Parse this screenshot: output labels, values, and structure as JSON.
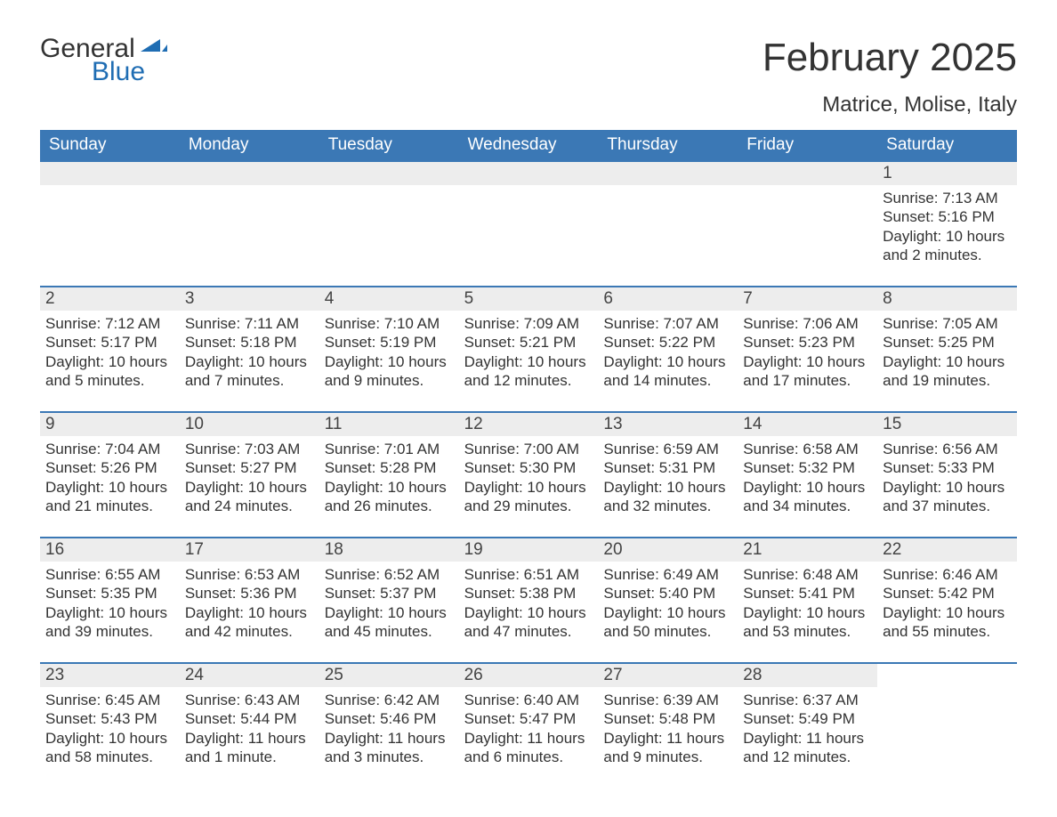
{
  "logo": {
    "word1": "General",
    "word2": "Blue"
  },
  "title": "February 2025",
  "location": "Matrice, Molise, Italy",
  "colors": {
    "header_bg": "#3b78b5",
    "header_text": "#ffffff",
    "stripe_bg": "#ededed",
    "divider": "#3b78b5",
    "text": "#333333",
    "logo_blue": "#1f6db3"
  },
  "day_headers": [
    "Sunday",
    "Monday",
    "Tuesday",
    "Wednesday",
    "Thursday",
    "Friday",
    "Saturday"
  ],
  "weeks": [
    [
      {
        "empty": true
      },
      {
        "empty": true
      },
      {
        "empty": true
      },
      {
        "empty": true
      },
      {
        "empty": true
      },
      {
        "empty": true
      },
      {
        "n": "1",
        "sunrise": "Sunrise: 7:13 AM",
        "sunset": "Sunset: 5:16 PM",
        "day1": "Daylight: 10 hours",
        "day2": "and 2 minutes."
      }
    ],
    [
      {
        "n": "2",
        "sunrise": "Sunrise: 7:12 AM",
        "sunset": "Sunset: 5:17 PM",
        "day1": "Daylight: 10 hours",
        "day2": "and 5 minutes."
      },
      {
        "n": "3",
        "sunrise": "Sunrise: 7:11 AM",
        "sunset": "Sunset: 5:18 PM",
        "day1": "Daylight: 10 hours",
        "day2": "and 7 minutes."
      },
      {
        "n": "4",
        "sunrise": "Sunrise: 7:10 AM",
        "sunset": "Sunset: 5:19 PM",
        "day1": "Daylight: 10 hours",
        "day2": "and 9 minutes."
      },
      {
        "n": "5",
        "sunrise": "Sunrise: 7:09 AM",
        "sunset": "Sunset: 5:21 PM",
        "day1": "Daylight: 10 hours",
        "day2": "and 12 minutes."
      },
      {
        "n": "6",
        "sunrise": "Sunrise: 7:07 AM",
        "sunset": "Sunset: 5:22 PM",
        "day1": "Daylight: 10 hours",
        "day2": "and 14 minutes."
      },
      {
        "n": "7",
        "sunrise": "Sunrise: 7:06 AM",
        "sunset": "Sunset: 5:23 PM",
        "day1": "Daylight: 10 hours",
        "day2": "and 17 minutes."
      },
      {
        "n": "8",
        "sunrise": "Sunrise: 7:05 AM",
        "sunset": "Sunset: 5:25 PM",
        "day1": "Daylight: 10 hours",
        "day2": "and 19 minutes."
      }
    ],
    [
      {
        "n": "9",
        "sunrise": "Sunrise: 7:04 AM",
        "sunset": "Sunset: 5:26 PM",
        "day1": "Daylight: 10 hours",
        "day2": "and 21 minutes."
      },
      {
        "n": "10",
        "sunrise": "Sunrise: 7:03 AM",
        "sunset": "Sunset: 5:27 PM",
        "day1": "Daylight: 10 hours",
        "day2": "and 24 minutes."
      },
      {
        "n": "11",
        "sunrise": "Sunrise: 7:01 AM",
        "sunset": "Sunset: 5:28 PM",
        "day1": "Daylight: 10 hours",
        "day2": "and 26 minutes."
      },
      {
        "n": "12",
        "sunrise": "Sunrise: 7:00 AM",
        "sunset": "Sunset: 5:30 PM",
        "day1": "Daylight: 10 hours",
        "day2": "and 29 minutes."
      },
      {
        "n": "13",
        "sunrise": "Sunrise: 6:59 AM",
        "sunset": "Sunset: 5:31 PM",
        "day1": "Daylight: 10 hours",
        "day2": "and 32 minutes."
      },
      {
        "n": "14",
        "sunrise": "Sunrise: 6:58 AM",
        "sunset": "Sunset: 5:32 PM",
        "day1": "Daylight: 10 hours",
        "day2": "and 34 minutes."
      },
      {
        "n": "15",
        "sunrise": "Sunrise: 6:56 AM",
        "sunset": "Sunset: 5:33 PM",
        "day1": "Daylight: 10 hours",
        "day2": "and 37 minutes."
      }
    ],
    [
      {
        "n": "16",
        "sunrise": "Sunrise: 6:55 AM",
        "sunset": "Sunset: 5:35 PM",
        "day1": "Daylight: 10 hours",
        "day2": "and 39 minutes."
      },
      {
        "n": "17",
        "sunrise": "Sunrise: 6:53 AM",
        "sunset": "Sunset: 5:36 PM",
        "day1": "Daylight: 10 hours",
        "day2": "and 42 minutes."
      },
      {
        "n": "18",
        "sunrise": "Sunrise: 6:52 AM",
        "sunset": "Sunset: 5:37 PM",
        "day1": "Daylight: 10 hours",
        "day2": "and 45 minutes."
      },
      {
        "n": "19",
        "sunrise": "Sunrise: 6:51 AM",
        "sunset": "Sunset: 5:38 PM",
        "day1": "Daylight: 10 hours",
        "day2": "and 47 minutes."
      },
      {
        "n": "20",
        "sunrise": "Sunrise: 6:49 AM",
        "sunset": "Sunset: 5:40 PM",
        "day1": "Daylight: 10 hours",
        "day2": "and 50 minutes."
      },
      {
        "n": "21",
        "sunrise": "Sunrise: 6:48 AM",
        "sunset": "Sunset: 5:41 PM",
        "day1": "Daylight: 10 hours",
        "day2": "and 53 minutes."
      },
      {
        "n": "22",
        "sunrise": "Sunrise: 6:46 AM",
        "sunset": "Sunset: 5:42 PM",
        "day1": "Daylight: 10 hours",
        "day2": "and 55 minutes."
      }
    ],
    [
      {
        "n": "23",
        "sunrise": "Sunrise: 6:45 AM",
        "sunset": "Sunset: 5:43 PM",
        "day1": "Daylight: 10 hours",
        "day2": "and 58 minutes."
      },
      {
        "n": "24",
        "sunrise": "Sunrise: 6:43 AM",
        "sunset": "Sunset: 5:44 PM",
        "day1": "Daylight: 11 hours",
        "day2": "and 1 minute."
      },
      {
        "n": "25",
        "sunrise": "Sunrise: 6:42 AM",
        "sunset": "Sunset: 5:46 PM",
        "day1": "Daylight: 11 hours",
        "day2": "and 3 minutes."
      },
      {
        "n": "26",
        "sunrise": "Sunrise: 6:40 AM",
        "sunset": "Sunset: 5:47 PM",
        "day1": "Daylight: 11 hours",
        "day2": "and 6 minutes."
      },
      {
        "n": "27",
        "sunrise": "Sunrise: 6:39 AM",
        "sunset": "Sunset: 5:48 PM",
        "day1": "Daylight: 11 hours",
        "day2": "and 9 minutes."
      },
      {
        "n": "28",
        "sunrise": "Sunrise: 6:37 AM",
        "sunset": "Sunset: 5:49 PM",
        "day1": "Daylight: 11 hours",
        "day2": "and 12 minutes."
      },
      {
        "empty": true,
        "noStripe": true
      }
    ]
  ]
}
